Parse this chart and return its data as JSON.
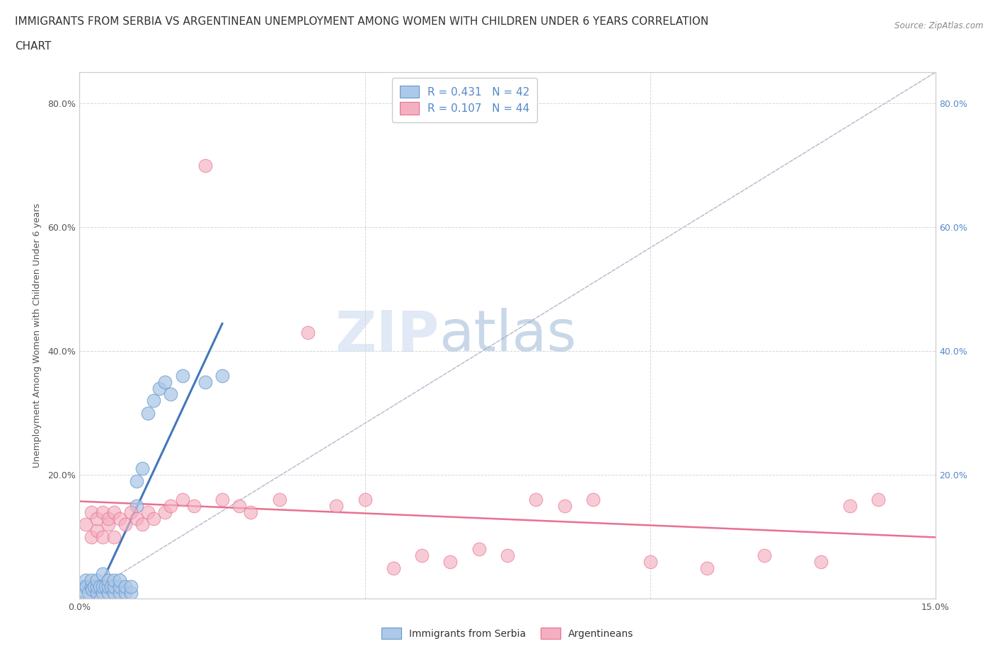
{
  "title_line1": "IMMIGRANTS FROM SERBIA VS ARGENTINEAN UNEMPLOYMENT AMONG WOMEN WITH CHILDREN UNDER 6 YEARS CORRELATION",
  "title_line2": "CHART",
  "source": "Source: ZipAtlas.com",
  "ylabel": "Unemployment Among Women with Children Under 6 years",
  "legend_r1": "R = 0.431   N = 42",
  "legend_r2": "R = 0.107   N = 44",
  "xmin": 0.0,
  "xmax": 0.15,
  "ymin": 0.0,
  "ymax": 0.85,
  "color_serbia": "#adc8e8",
  "color_serbia_edge": "#6699cc",
  "color_argentina": "#f4afc0",
  "color_argentina_edge": "#e87090",
  "color_serbia_line": "#4477bb",
  "color_argentina_line": "#e87090",
  "color_diag": "#b0b8cc",
  "watermark_zip": "ZIP",
  "watermark_atlas": "atlas",
  "background_color": "#ffffff",
  "grid_color": "#cccccc",
  "title_fontsize": 11,
  "axis_label_fontsize": 9,
  "tick_fontsize": 9,
  "right_tick_color": "#5588cc",
  "serbia_x": [
    0.0005,
    0.001,
    0.001,
    0.0012,
    0.0015,
    0.002,
    0.002,
    0.0022,
    0.0025,
    0.003,
    0.003,
    0.003,
    0.0035,
    0.004,
    0.004,
    0.004,
    0.0045,
    0.005,
    0.005,
    0.005,
    0.0055,
    0.006,
    0.006,
    0.006,
    0.007,
    0.007,
    0.007,
    0.008,
    0.008,
    0.009,
    0.009,
    0.01,
    0.01,
    0.011,
    0.012,
    0.013,
    0.014,
    0.015,
    0.016,
    0.018,
    0.022,
    0.025
  ],
  "serbia_y": [
    0.02,
    0.01,
    0.03,
    0.02,
    0.01,
    0.02,
    0.03,
    0.015,
    0.02,
    0.01,
    0.02,
    0.03,
    0.02,
    0.01,
    0.02,
    0.04,
    0.02,
    0.01,
    0.02,
    0.03,
    0.02,
    0.01,
    0.02,
    0.03,
    0.01,
    0.02,
    0.03,
    0.01,
    0.02,
    0.01,
    0.02,
    0.15,
    0.19,
    0.21,
    0.3,
    0.32,
    0.34,
    0.35,
    0.33,
    0.36,
    0.35,
    0.36
  ],
  "argentina_x": [
    0.001,
    0.002,
    0.002,
    0.003,
    0.003,
    0.004,
    0.004,
    0.005,
    0.005,
    0.006,
    0.006,
    0.007,
    0.008,
    0.009,
    0.01,
    0.011,
    0.012,
    0.013,
    0.015,
    0.016,
    0.018,
    0.02,
    0.022,
    0.025,
    0.028,
    0.03,
    0.035,
    0.04,
    0.045,
    0.05,
    0.055,
    0.06,
    0.065,
    0.07,
    0.075,
    0.08,
    0.085,
    0.09,
    0.1,
    0.11,
    0.12,
    0.13,
    0.135,
    0.14
  ],
  "argentina_y": [
    0.12,
    0.1,
    0.14,
    0.11,
    0.13,
    0.1,
    0.14,
    0.12,
    0.13,
    0.1,
    0.14,
    0.13,
    0.12,
    0.14,
    0.13,
    0.12,
    0.14,
    0.13,
    0.14,
    0.15,
    0.16,
    0.15,
    0.7,
    0.16,
    0.15,
    0.14,
    0.16,
    0.43,
    0.15,
    0.16,
    0.05,
    0.07,
    0.06,
    0.08,
    0.07,
    0.16,
    0.15,
    0.16,
    0.06,
    0.05,
    0.07,
    0.06,
    0.15,
    0.16
  ],
  "legend1_bottom": "Immigrants from Serbia",
  "legend2_bottom": "Argentineans"
}
